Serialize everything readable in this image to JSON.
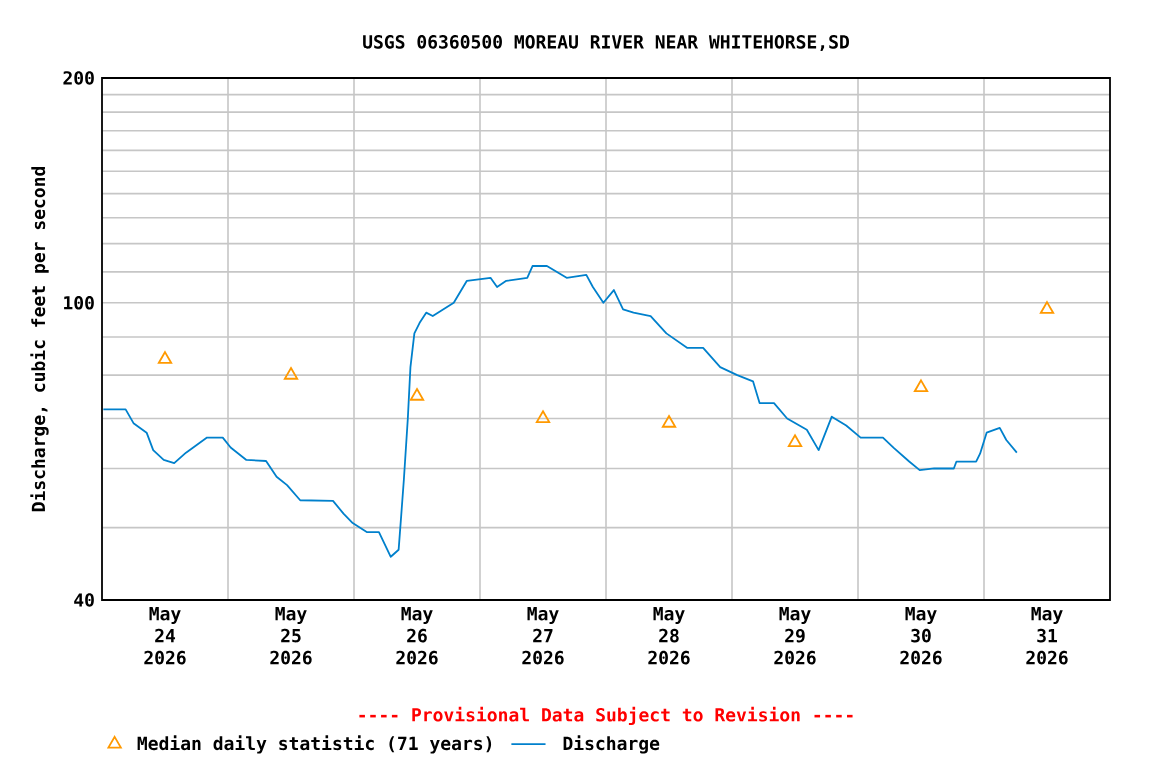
{
  "chart_data": {
    "type": "line",
    "title": "USGS 06360500 MOREAU RIVER NEAR WHITEHORSE,SD",
    "ylabel": "Discharge, cubic feet per second",
    "annotations": [
      "---- Provisional Data Subject to Revision ----"
    ],
    "log": "y",
    "grid": true,
    "legend": "bottom",
    "xlim": [
      "2026-05-24T00:00",
      "2026-06-01T00:00"
    ],
    "xticks": [
      {
        "value": "2026-05-24T12:00",
        "label": "May 24 2026"
      },
      {
        "value": "2026-05-25T12:00",
        "label": "May 25 2026"
      },
      {
        "value": "2026-05-26T12:00",
        "label": "May 26 2026"
      },
      {
        "value": "2026-05-27T12:00",
        "label": "May 27 2026"
      },
      {
        "value": "2026-05-28T12:00",
        "label": "May 28 2026"
      },
      {
        "value": "2026-05-29T12:00",
        "label": "May 29 2026"
      },
      {
        "value": "2026-05-30T12:00",
        "label": "May 30 2026"
      },
      {
        "value": "2026-05-31T12:00",
        "label": "May 31 2026"
      },
      {
        "value": "2026-05-25T00:00",
        "label": null
      },
      {
        "value": "2026-05-26T00:00",
        "label": null
      },
      {
        "value": "2026-05-27T00:00",
        "label": null
      },
      {
        "value": "2026-05-28T00:00",
        "label": null
      },
      {
        "value": "2026-05-29T00:00",
        "label": null
      },
      {
        "value": "2026-05-30T00:00",
        "label": null
      },
      {
        "value": "2026-05-31T00:00",
        "label": null
      }
    ],
    "ylim": [
      40,
      200
    ],
    "yticks": [
      40,
      {
        "value": 50,
        "label": null
      },
      {
        "value": 60,
        "label": null
      },
      {
        "value": 70,
        "label": null
      },
      {
        "value": 80,
        "label": null
      },
      {
        "value": 90,
        "label": null
      },
      100,
      {
        "value": 110,
        "label": null
      },
      {
        "value": 120,
        "label": null
      },
      {
        "value": 130,
        "label": null
      },
      {
        "value": 140,
        "label": null
      },
      {
        "value": 150,
        "label": null
      },
      {
        "value": 160,
        "label": null
      },
      {
        "value": 170,
        "label": null
      },
      {
        "value": 180,
        "label": null
      },
      {
        "value": 190,
        "label": null
      },
      200
    ],
    "series": [
      {
        "name": "Median daily statistic (71 years)",
        "type": "scatter",
        "marker": "triangle",
        "color": "#ff9900",
        "x": [
          "2026-05-24T12:00",
          "2026-05-25T12:00",
          "2026-05-26T12:00",
          "2026-05-27T12:00",
          "2026-05-28T12:00",
          "2026-05-29T12:00",
          "2026-05-30T12:00",
          "2026-05-31T12:00"
        ],
        "values": [
          84,
          80,
          75,
          70,
          69,
          65,
          77,
          98
        ]
      },
      {
        "name": "Discharge",
        "marker": "none",
        "line_style": "solid",
        "color": "#0080cc",
        "x": [
          "2026-05-24T00:15",
          "2026-05-24T04:30",
          "2026-05-24T06:00",
          "2026-05-24T08:30",
          "2026-05-24T09:45",
          "2026-05-24T11:45",
          "2026-05-24T13:45",
          "2026-05-24T16:00",
          "2026-05-24T20:00",
          "2026-05-24T23:00",
          "2026-05-25T00:30",
          "2026-05-25T03:30",
          "2026-05-25T07:15",
          "2026-05-25T09:15",
          "2026-05-25T11:15",
          "2026-05-25T13:45",
          "2026-05-25T20:00",
          "2026-05-25T22:00",
          "2026-05-25T23:45",
          "2026-05-26T02:30",
          "2026-05-26T04:45",
          "2026-05-26T07:00",
          "2026-05-26T08:30",
          "2026-05-26T09:00",
          "2026-05-26T09:30",
          "2026-05-26T10:15",
          "2026-05-26T10:45",
          "2026-05-26T11:30",
          "2026-05-26T12:30",
          "2026-05-26T13:45",
          "2026-05-26T15:00",
          "2026-05-26T19:00",
          "2026-05-26T21:30",
          "2026-05-27T02:00",
          "2026-05-27T03:15",
          "2026-05-27T05:00",
          "2026-05-27T09:00",
          "2026-05-27T10:00",
          "2026-05-27T12:45",
          "2026-05-27T16:30",
          "2026-05-27T20:15",
          "2026-05-27T21:30",
          "2026-05-27T23:30",
          "2026-05-28T01:30",
          "2026-05-28T03:15",
          "2026-05-28T05:15",
          "2026-05-28T08:30",
          "2026-05-28T11:30",
          "2026-05-28T15:30",
          "2026-05-28T18:30",
          "2026-05-28T21:45",
          "2026-05-29T01:00",
          "2026-05-29T04:00",
          "2026-05-29T05:15",
          "2026-05-29T08:00",
          "2026-05-29T10:30",
          "2026-05-29T14:15",
          "2026-05-29T16:30",
          "2026-05-29T19:00",
          "2026-05-29T21:45",
          "2026-05-30T00:30",
          "2026-05-30T04:45",
          "2026-05-30T06:45",
          "2026-05-30T09:45",
          "2026-05-30T11:45",
          "2026-05-30T14:30",
          "2026-05-30T18:15",
          "2026-05-30T18:45",
          "2026-05-30T22:30",
          "2026-05-30T23:15",
          "2026-05-31T00:30",
          "2026-05-31T03:00",
          "2026-05-31T04:15",
          "2026-05-31T06:15"
        ],
        "values": [
          72,
          72,
          69,
          67,
          63.5,
          61.6,
          61,
          63,
          66,
          66,
          64,
          61.6,
          61.4,
          58.5,
          57,
          54.4,
          54.3,
          52.2,
          50.7,
          49.3,
          49.3,
          45.7,
          46.7,
          52,
          58,
          70,
          82,
          91,
          94,
          97,
          96,
          100,
          107,
          108,
          105,
          107,
          108,
          112,
          112,
          108,
          109,
          105,
          100,
          104,
          98,
          97,
          96,
          91,
          87,
          87,
          82,
          80,
          78.5,
          73.4,
          73.4,
          70,
          67.6,
          63.5,
          70.4,
          68.5,
          66,
          66,
          64,
          61.3,
          59.7,
          60,
          60,
          61.3,
          61.3,
          62.8,
          67,
          68,
          65.5,
          63
        ]
      }
    ]
  }
}
